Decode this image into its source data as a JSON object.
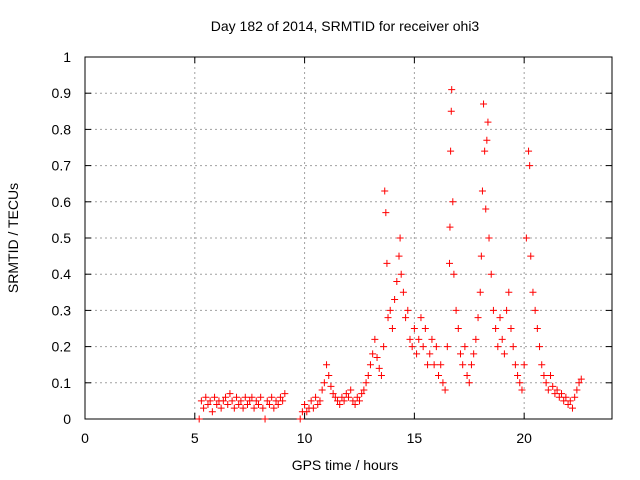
{
  "chart_data": {
    "type": "scatter",
    "title": "Day 182 of 2014, SRMTID for receiver ohi3",
    "xlabel": "GPS time / hours",
    "ylabel": "SRMTID / TECUs",
    "xlim": [
      0,
      24
    ],
    "ylim": [
      0,
      1
    ],
    "xticks": [
      "0",
      "5",
      "10",
      "15",
      "20"
    ],
    "yticks": [
      "0",
      "0.1",
      "0.2",
      "0.3",
      "0.4",
      "0.5",
      "0.6",
      "0.7",
      "0.8",
      "0.9",
      "1"
    ],
    "grid": true,
    "marker": "+",
    "series_color": "#ff0000",
    "series": [
      {
        "name": "SRMTID",
        "points": [
          [
            5.2,
            0.0
          ],
          [
            5.3,
            0.05
          ],
          [
            5.4,
            0.03
          ],
          [
            5.5,
            0.06
          ],
          [
            5.6,
            0.04
          ],
          [
            5.7,
            0.05
          ],
          [
            5.8,
            0.02
          ],
          [
            5.9,
            0.06
          ],
          [
            6.0,
            0.04
          ],
          [
            6.1,
            0.05
          ],
          [
            6.2,
            0.03
          ],
          [
            6.3,
            0.05
          ],
          [
            6.4,
            0.06
          ],
          [
            6.5,
            0.04
          ],
          [
            6.6,
            0.07
          ],
          [
            6.7,
            0.05
          ],
          [
            6.8,
            0.03
          ],
          [
            6.9,
            0.06
          ],
          [
            7.0,
            0.04
          ],
          [
            7.1,
            0.05
          ],
          [
            7.2,
            0.03
          ],
          [
            7.3,
            0.06
          ],
          [
            7.4,
            0.04
          ],
          [
            7.5,
            0.05
          ],
          [
            7.6,
            0.06
          ],
          [
            7.7,
            0.03
          ],
          [
            7.8,
            0.05
          ],
          [
            7.9,
            0.04
          ],
          [
            8.0,
            0.06
          ],
          [
            8.1,
            0.03
          ],
          [
            8.2,
            0.0
          ],
          [
            8.3,
            0.05
          ],
          [
            8.4,
            0.04
          ],
          [
            8.5,
            0.06
          ],
          [
            8.6,
            0.03
          ],
          [
            8.7,
            0.05
          ],
          [
            8.8,
            0.04
          ],
          [
            8.9,
            0.06
          ],
          [
            9.0,
            0.05
          ],
          [
            9.1,
            0.07
          ],
          [
            9.8,
            0.0
          ],
          [
            9.9,
            0.02
          ],
          [
            10.0,
            0.04
          ],
          [
            10.1,
            0.02
          ],
          [
            10.2,
            0.03
          ],
          [
            10.3,
            0.05
          ],
          [
            10.4,
            0.03
          ],
          [
            10.5,
            0.06
          ],
          [
            10.6,
            0.04
          ],
          [
            10.7,
            0.05
          ],
          [
            10.8,
            0.08
          ],
          [
            10.9,
            0.1
          ],
          [
            11.0,
            0.15
          ],
          [
            11.1,
            0.12
          ],
          [
            11.2,
            0.09
          ],
          [
            11.3,
            0.07
          ],
          [
            11.4,
            0.06
          ],
          [
            11.5,
            0.05
          ],
          [
            11.6,
            0.04
          ],
          [
            11.7,
            0.06
          ],
          [
            11.8,
            0.05
          ],
          [
            11.9,
            0.07
          ],
          [
            12.0,
            0.06
          ],
          [
            12.1,
            0.08
          ],
          [
            12.2,
            0.05
          ],
          [
            12.3,
            0.04
          ],
          [
            12.4,
            0.06
          ],
          [
            12.5,
            0.05
          ],
          [
            12.6,
            0.07
          ],
          [
            12.7,
            0.08
          ],
          [
            12.8,
            0.1
          ],
          [
            12.9,
            0.12
          ],
          [
            13.0,
            0.15
          ],
          [
            13.1,
            0.18
          ],
          [
            13.2,
            0.22
          ],
          [
            13.3,
            0.17
          ],
          [
            13.4,
            0.14
          ],
          [
            13.5,
            0.12
          ],
          [
            13.6,
            0.2
          ],
          [
            13.65,
            0.63
          ],
          [
            13.7,
            0.57
          ],
          [
            13.75,
            0.43
          ],
          [
            13.8,
            0.28
          ],
          [
            13.9,
            0.3
          ],
          [
            14.0,
            0.25
          ],
          [
            14.1,
            0.33
          ],
          [
            14.2,
            0.38
          ],
          [
            14.3,
            0.45
          ],
          [
            14.35,
            0.5
          ],
          [
            14.4,
            0.4
          ],
          [
            14.5,
            0.35
          ],
          [
            14.6,
            0.28
          ],
          [
            14.7,
            0.3
          ],
          [
            14.8,
            0.22
          ],
          [
            14.9,
            0.2
          ],
          [
            15.0,
            0.25
          ],
          [
            15.1,
            0.18
          ],
          [
            15.2,
            0.22
          ],
          [
            15.3,
            0.28
          ],
          [
            15.4,
            0.2
          ],
          [
            15.5,
            0.25
          ],
          [
            15.6,
            0.15
          ],
          [
            15.7,
            0.18
          ],
          [
            15.8,
            0.22
          ],
          [
            15.9,
            0.15
          ],
          [
            16.0,
            0.2
          ],
          [
            16.1,
            0.12
          ],
          [
            16.2,
            0.15
          ],
          [
            16.3,
            0.1
          ],
          [
            16.4,
            0.08
          ],
          [
            16.5,
            0.2
          ],
          [
            16.6,
            0.43
          ],
          [
            16.62,
            0.53
          ],
          [
            16.65,
            0.74
          ],
          [
            16.68,
            0.85
          ],
          [
            16.7,
            0.91
          ],
          [
            16.75,
            0.6
          ],
          [
            16.8,
            0.4
          ],
          [
            16.9,
            0.3
          ],
          [
            17.0,
            0.25
          ],
          [
            17.1,
            0.18
          ],
          [
            17.2,
            0.15
          ],
          [
            17.3,
            0.2
          ],
          [
            17.4,
            0.12
          ],
          [
            17.5,
            0.1
          ],
          [
            17.6,
            0.15
          ],
          [
            17.7,
            0.18
          ],
          [
            17.8,
            0.22
          ],
          [
            17.9,
            0.28
          ],
          [
            18.0,
            0.35
          ],
          [
            18.05,
            0.45
          ],
          [
            18.1,
            0.63
          ],
          [
            18.15,
            0.87
          ],
          [
            18.2,
            0.74
          ],
          [
            18.25,
            0.58
          ],
          [
            18.3,
            0.77
          ],
          [
            18.35,
            0.82
          ],
          [
            18.4,
            0.5
          ],
          [
            18.5,
            0.4
          ],
          [
            18.6,
            0.3
          ],
          [
            18.7,
            0.25
          ],
          [
            18.8,
            0.2
          ],
          [
            18.9,
            0.28
          ],
          [
            19.0,
            0.22
          ],
          [
            19.1,
            0.18
          ],
          [
            19.2,
            0.3
          ],
          [
            19.3,
            0.35
          ],
          [
            19.4,
            0.25
          ],
          [
            19.5,
            0.2
          ],
          [
            19.6,
            0.15
          ],
          [
            19.7,
            0.12
          ],
          [
            19.8,
            0.1
          ],
          [
            19.9,
            0.08
          ],
          [
            20.0,
            0.15
          ],
          [
            20.1,
            0.5
          ],
          [
            20.2,
            0.74
          ],
          [
            20.25,
            0.7
          ],
          [
            20.3,
            0.45
          ],
          [
            20.4,
            0.35
          ],
          [
            20.5,
            0.3
          ],
          [
            20.6,
            0.25
          ],
          [
            20.7,
            0.2
          ],
          [
            20.8,
            0.15
          ],
          [
            20.9,
            0.12
          ],
          [
            21.0,
            0.1
          ],
          [
            21.1,
            0.08
          ],
          [
            21.2,
            0.12
          ],
          [
            21.3,
            0.09
          ],
          [
            21.4,
            0.07
          ],
          [
            21.5,
            0.08
          ],
          [
            21.6,
            0.06
          ],
          [
            21.7,
            0.07
          ],
          [
            21.8,
            0.05
          ],
          [
            21.9,
            0.06
          ],
          [
            22.0,
            0.04
          ],
          [
            22.1,
            0.05
          ],
          [
            22.2,
            0.03
          ],
          [
            22.3,
            0.06
          ],
          [
            22.4,
            0.08
          ],
          [
            22.5,
            0.1
          ],
          [
            22.6,
            0.11
          ]
        ]
      }
    ]
  }
}
